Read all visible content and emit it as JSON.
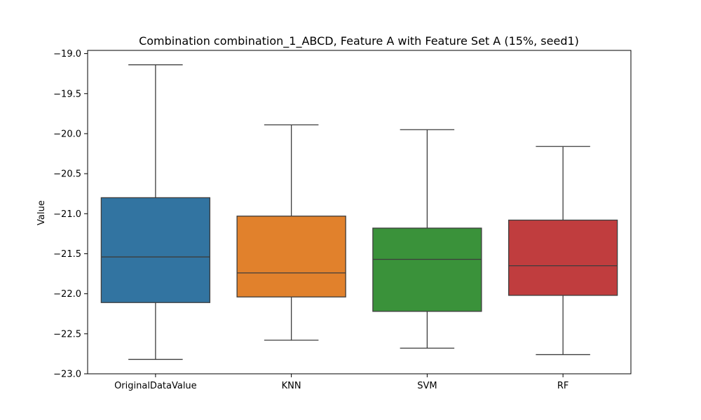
{
  "chart_data": {
    "type": "box",
    "title": "Combination combination_1_ABCD, Feature A with Feature Set A (15%, seed1)",
    "xlabel": "",
    "ylabel": "Value",
    "ylim": [
      -23.0,
      -18.96
    ],
    "yticks": [
      -23.0,
      -22.5,
      -22.0,
      -21.5,
      -21.0,
      -20.5,
      -20.0,
      -19.5,
      -19.0
    ],
    "ytick_labels": [
      "−23.0",
      "−22.5",
      "−22.0",
      "−21.5",
      "−21.0",
      "−20.5",
      "−20.0",
      "−19.5",
      "−19.0"
    ],
    "grid": false,
    "categories": [
      "OriginalDataValue",
      "KNN",
      "SVM",
      "RF"
    ],
    "colors": [
      "#3274a1",
      "#e1812c",
      "#3a923a",
      "#c03d3e"
    ],
    "boxes": [
      {
        "category": "OriginalDataValue",
        "min": -22.82,
        "q1": -22.11,
        "median": -21.54,
        "q3": -20.8,
        "max": -19.14
      },
      {
        "category": "KNN",
        "min": -22.58,
        "q1": -22.04,
        "median": -21.74,
        "q3": -21.03,
        "max": -19.89
      },
      {
        "category": "SVM",
        "min": -22.68,
        "q1": -22.22,
        "median": -21.57,
        "q3": -21.18,
        "max": -19.95
      },
      {
        "category": "RF",
        "min": -22.76,
        "q1": -22.02,
        "median": -21.65,
        "q3": -21.08,
        "max": -20.16
      }
    ]
  }
}
